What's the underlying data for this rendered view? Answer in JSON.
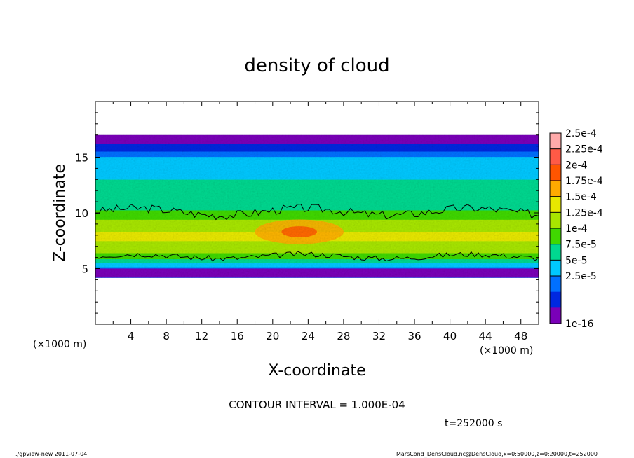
{
  "chart_data": {
    "type": "heatmap",
    "title": "density of cloud",
    "xlabel": "X-coordinate",
    "ylabel": "Z-coordinate",
    "x_unit_note": "(×1000 m)",
    "y_unit_note": "(×1000 m)",
    "xlim": [
      0,
      50
    ],
    "ylim": [
      0,
      20
    ],
    "x_ticks": [
      4,
      8,
      12,
      16,
      20,
      24,
      28,
      32,
      36,
      40,
      44,
      48
    ],
    "y_ticks": [
      5,
      10,
      15
    ],
    "contour_interval": "CONTOUR INTERVAL = 1.000E-04",
    "time_label": "t=252000 s",
    "colorbar": {
      "labels": [
        "2.5e-4",
        "2.25e-4",
        "2e-4",
        "1.75e-4",
        "1.5e-4",
        "1.25e-4",
        "1e-4",
        "7.5e-5",
        "5e-5",
        "2.5e-5",
        "1e-16"
      ],
      "colors": [
        "#ffaaaa",
        "#ff5a46",
        "#ff5500",
        "#ffaa00",
        "#e8e800",
        "#a8e600",
        "#40d800",
        "#00d890",
        "#00c8ff",
        "#0070ff",
        "#0028e0",
        "#7a00b8"
      ]
    },
    "profile": {
      "z": [
        4.2,
        4.8,
        5.4,
        6.0,
        7.0,
        8.0,
        9.0,
        10.0,
        11.0,
        12.0,
        13.0,
        14.0,
        15.0,
        15.6,
        16.2,
        16.8
      ],
      "density": [
        5e-17,
        3e-05,
        6.5e-05,
        0.00011,
        0.000145,
        0.000155,
        0.00014,
        0.000105,
        8.5e-05,
        7.8e-05,
        7.5e-05,
        7e-05,
        5.5e-05,
        2e-05,
        5e-17,
        5e-17
      ]
    },
    "hotspot": {
      "x": 23,
      "z": 8.3,
      "density": 0.00022
    },
    "contour_levels": [
      0.0001
    ]
  },
  "footer": {
    "left": "./gpview-new  2011-07-04",
    "right": "MarsCond_DensCloud.nc@DensCloud,x=0:50000,z=0:20000,t=252000"
  }
}
